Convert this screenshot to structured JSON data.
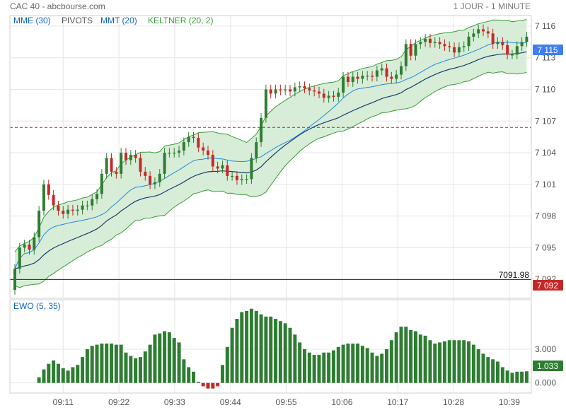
{
  "header": {
    "title": "CAC 40 - abcbourse.com",
    "period": "1 JOUR - 1 MINUTE"
  },
  "legend": [
    {
      "label": "MME (30)",
      "color": "#1565c0"
    },
    {
      "label": "PIVOTS",
      "color": "#555555"
    },
    {
      "label": "MMT (20)",
      "color": "#1565c0"
    },
    {
      "label": "KELTNER (20, 2)",
      "color": "#3a9a3a"
    }
  ],
  "indicator": {
    "title": "EWO (5, 35)"
  },
  "colors": {
    "up": "#2e7d32",
    "down": "#c62828",
    "band_fill": "#d3ebd3",
    "band_line": "#3a9a3a",
    "mme": "#1a3c6e",
    "mmt": "#1e88e5",
    "last_price_bg": "#3f7df0",
    "low_price_bg": "#c62828",
    "ewo_last_bg": "#2e7d32",
    "pivot": "#cc2222"
  },
  "chart_data": [
    {
      "type": "candlestick",
      "title": "CAC 40 - abcbourse.com",
      "x_tick_labels": [
        "09:11",
        "09:22",
        "09:33",
        "09:44",
        "09:55",
        "10:06",
        "10:17",
        "10:28",
        "10:39"
      ],
      "y_tick_labels": [
        "7 116",
        "7 113",
        "7 110",
        "7 107",
        "7 104",
        "7 101",
        "7 098",
        "7 095",
        "7 092"
      ],
      "ylim": [
        7090.2,
        7117.0
      ],
      "pivot_level": 7106.4,
      "support_level": 7091.98,
      "support_label": "7091.98",
      "last_price_label": "7 115",
      "low_price_label": "7 092",
      "last_price": 7115.0,
      "low_price": 7092.0,
      "close_series": [
        7093,
        7095,
        7095.3,
        7094.8,
        7096,
        7098.5,
        7101,
        7100,
        7099,
        7098.5,
        7098.2,
        7098.6,
        7098.5,
        7098.6,
        7099,
        7099,
        7099.6,
        7100.1,
        7102,
        7103.5,
        7102.2,
        7102,
        7104,
        7103.3,
        7103.8,
        7103.5,
        7102.2,
        7101.8,
        7101,
        7101.2,
        7102,
        7104,
        7104,
        7104,
        7104.2,
        7105,
        7105.5,
        7105.4,
        7104.5,
        7104.2,
        7103.8,
        7102.7,
        7102.5,
        7102.8,
        7101.8,
        7101.8,
        7101.4,
        7101.5,
        7101.5,
        7103.5,
        7105,
        7107.3,
        7110,
        7109.6,
        7110,
        7109.9,
        7110,
        7109.8,
        7110.2,
        7110.3,
        7110.1,
        7109.9,
        7109.8,
        7109.6,
        7109.2,
        7109.4,
        7109.3,
        7109.7,
        7111.2,
        7110.7,
        7111.2,
        7111,
        7111.3,
        7111.3,
        7111.2,
        7111.8,
        7112,
        7111.2,
        7111,
        7111.4,
        7112.2,
        7114.3,
        7113.2,
        7114.3,
        7114.5,
        7114.8,
        7114.4,
        7114.5,
        7114.3,
        7114.1,
        7114,
        7113.5,
        7114,
        7114.1,
        7115,
        7115.3,
        7115.7,
        7115.5,
        7115.3,
        7114.3,
        7114.5,
        7114.2,
        7113.3,
        7113.3,
        7114.1,
        7114.5,
        7115
      ],
      "series": [
        {
          "name": "MME (30)"
        },
        {
          "name": "MMT (20)"
        },
        {
          "name": "KELTNER (20, 2)"
        }
      ]
    },
    {
      "type": "bar",
      "title": "EWO (5, 35)",
      "y_tick_labels": [
        "3.000",
        "0.000"
      ],
      "ylim": [
        -0.9,
        7.4
      ],
      "last_value_label": "1.033",
      "last_value": 1.033,
      "values": [
        0.5,
        1.2,
        1.7,
        2,
        1.7,
        1.3,
        1.1,
        1.4,
        1.6,
        2.3,
        3,
        3.3,
        3.4,
        3.5,
        3.5,
        3.5,
        3.4,
        3.4,
        2.7,
        2.4,
        2.2,
        2.3,
        2.8,
        3.4,
        4.3,
        4.4,
        4.6,
        4.5,
        4,
        3.6,
        2.1,
        1.4,
        1,
        0.1,
        -0.3,
        -0.5,
        -0.5,
        -0.3,
        1.6,
        3.2,
        4.9,
        5.7,
        6.3,
        6.4,
        6.6,
        6.4,
        6.1,
        5.9,
        5.9,
        5.7,
        5.5,
        5.3,
        4.9,
        4.3,
        3.6,
        3,
        2.7,
        2.5,
        2.5,
        2.7,
        2.7,
        2.9,
        3.2,
        3.4,
        3.5,
        3.5,
        3.5,
        3.3,
        3.1,
        2.7,
        2.4,
        2.6,
        3,
        3.8,
        4.5,
        5,
        5,
        4.7,
        4.6,
        4.3,
        4.2,
        3.8,
        3.5,
        3.6,
        3.7,
        3.8,
        3.8,
        3.8,
        3.8,
        3.7,
        3.4,
        3,
        2.6,
        2.3,
        2.1,
        1.9,
        1.4,
        1.1,
        0.9,
        1,
        1,
        1.033
      ]
    }
  ]
}
